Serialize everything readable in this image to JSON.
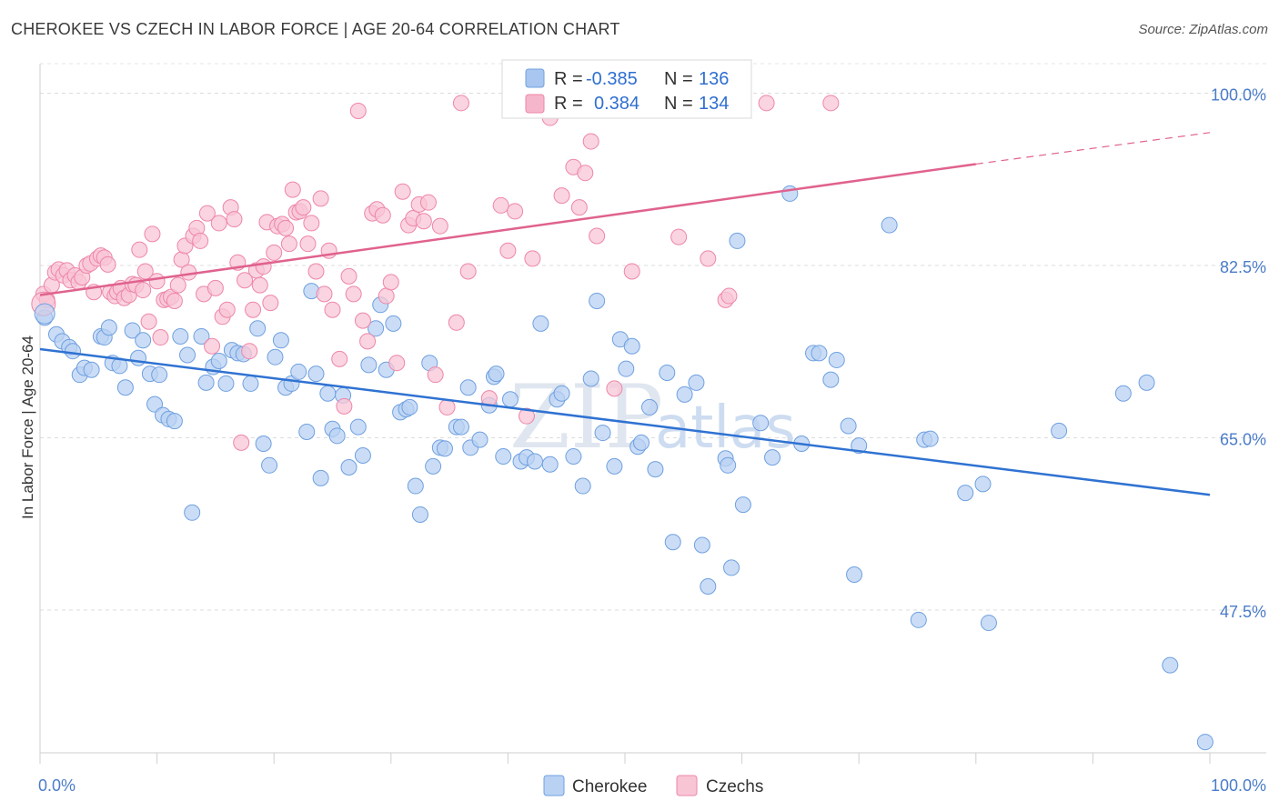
{
  "header": {
    "title": "CHEROKEE VS CZECH IN LABOR FORCE | AGE 20-64 CORRELATION CHART",
    "source": "Source: ZipAtlas.com"
  },
  "watermark": {
    "part1": "ZIP",
    "part2": "atlas"
  },
  "legend": {
    "rows": [
      {
        "r_label": "R =",
        "r_value": "-0.385",
        "n_label": "N =",
        "n_value": "136",
        "color": "#a9c6f0"
      },
      {
        "r_label": "R =",
        "r_value": "0.384",
        "n_label": "N =",
        "n_value": "134",
        "color": "#f5b6cb"
      }
    ]
  },
  "bottom_legend": {
    "items": [
      "Cherokee",
      "Czechs"
    ]
  },
  "chart_data": {
    "type": "scatter",
    "title": "CHEROKEE VS CZECH IN LABOR FORCE | AGE 20-64 CORRELATION CHART",
    "ylabel": "In Labor Force | Age 20-64",
    "xlabel": "",
    "xlim": [
      0,
      100
    ],
    "ylim": [
      33,
      103
    ],
    "x_tick_labels": [
      "0.0%",
      "100.0%"
    ],
    "y_ticks": [
      100.0,
      82.5,
      65.0,
      47.5
    ],
    "y_tick_labels": [
      "100.0%",
      "82.5%",
      "65.0%",
      "47.5%"
    ],
    "grid": "horizontal dashed",
    "legend_placement": "top-center",
    "series": [
      {
        "name": "Cherokee",
        "color": "#6fa0e0",
        "fill": "#b9d2f3",
        "trend": {
          "x": [
            0,
            100
          ],
          "y": [
            74.0,
            59.2
          ],
          "color": "#2f72d2"
        },
        "points": [
          [
            0.4,
            77.2
          ],
          [
            1.4,
            75.5
          ],
          [
            1.9,
            74.8
          ],
          [
            2.5,
            74.2
          ],
          [
            2.8,
            73.8
          ],
          [
            3.4,
            71.4
          ],
          [
            3.8,
            72.1
          ],
          [
            4.4,
            71.9
          ],
          [
            5.2,
            75.3
          ],
          [
            5.5,
            75.2
          ],
          [
            5.9,
            76.2
          ],
          [
            6.2,
            72.6
          ],
          [
            6.8,
            72.3
          ],
          [
            7.3,
            70.1
          ],
          [
            7.9,
            75.9
          ],
          [
            8.4,
            73.1
          ],
          [
            8.8,
            74.9
          ],
          [
            9.4,
            71.5
          ],
          [
            9.8,
            68.4
          ],
          [
            10.2,
            71.4
          ],
          [
            10.5,
            67.3
          ],
          [
            11.0,
            66.9
          ],
          [
            11.5,
            66.7
          ],
          [
            12.0,
            75.3
          ],
          [
            12.6,
            73.4
          ],
          [
            13.0,
            57.4
          ],
          [
            13.8,
            75.3
          ],
          [
            14.2,
            70.6
          ],
          [
            14.8,
            72.2
          ],
          [
            15.3,
            72.8
          ],
          [
            15.9,
            70.5
          ],
          [
            16.4,
            73.9
          ],
          [
            16.9,
            73.6
          ],
          [
            17.4,
            73.5
          ],
          [
            18.0,
            70.5
          ],
          [
            18.6,
            76.1
          ],
          [
            19.1,
            64.4
          ],
          [
            19.6,
            62.2
          ],
          [
            20.1,
            73.2
          ],
          [
            20.6,
            74.9
          ],
          [
            21.0,
            70.1
          ],
          [
            21.5,
            70.5
          ],
          [
            22.1,
            71.7
          ],
          [
            22.8,
            65.6
          ],
          [
            23.2,
            79.9
          ],
          [
            23.6,
            71.5
          ],
          [
            24.0,
            60.9
          ],
          [
            24.6,
            69.5
          ],
          [
            25.0,
            65.9
          ],
          [
            25.4,
            65.2
          ],
          [
            25.9,
            69.3
          ],
          [
            26.4,
            62.0
          ],
          [
            27.2,
            66.1
          ],
          [
            27.6,
            63.2
          ],
          [
            28.1,
            72.4
          ],
          [
            28.7,
            76.1
          ],
          [
            29.1,
            78.5
          ],
          [
            29.6,
            71.9
          ],
          [
            30.2,
            76.6
          ],
          [
            30.8,
            67.6
          ],
          [
            31.3,
            67.9
          ],
          [
            31.6,
            68.1
          ],
          [
            32.1,
            60.1
          ],
          [
            32.5,
            57.2
          ],
          [
            33.3,
            72.6
          ],
          [
            33.6,
            62.1
          ],
          [
            34.2,
            64.0
          ],
          [
            34.6,
            63.9
          ],
          [
            35.6,
            66.1
          ],
          [
            36.0,
            66.1
          ],
          [
            36.6,
            70.1
          ],
          [
            36.8,
            64.0
          ],
          [
            37.6,
            64.8
          ],
          [
            38.4,
            68.3
          ],
          [
            38.8,
            71.2
          ],
          [
            39.0,
            71.5
          ],
          [
            39.6,
            63.1
          ],
          [
            40.2,
            68.9
          ],
          [
            41.1,
            62.6
          ],
          [
            41.6,
            63.0
          ],
          [
            42.3,
            62.6
          ],
          [
            42.8,
            76.6
          ],
          [
            43.6,
            62.3
          ],
          [
            44.2,
            68.9
          ],
          [
            44.6,
            69.5
          ],
          [
            45.6,
            63.1
          ],
          [
            46.4,
            60.1
          ],
          [
            47.1,
            71.0
          ],
          [
            47.6,
            78.9
          ],
          [
            48.1,
            65.5
          ],
          [
            49.1,
            62.1
          ],
          [
            49.6,
            75.0
          ],
          [
            50.1,
            72.0
          ],
          [
            50.6,
            74.3
          ],
          [
            51.1,
            64.1
          ],
          [
            51.4,
            64.5
          ],
          [
            52.1,
            68.1
          ],
          [
            52.6,
            61.8
          ],
          [
            53.6,
            71.6
          ],
          [
            54.1,
            54.4
          ],
          [
            55.1,
            69.4
          ],
          [
            56.1,
            70.6
          ],
          [
            56.6,
            54.1
          ],
          [
            57.1,
            49.9
          ],
          [
            58.6,
            62.9
          ],
          [
            58.8,
            62.2
          ],
          [
            59.1,
            51.8
          ],
          [
            59.6,
            85.0
          ],
          [
            60.1,
            58.2
          ],
          [
            61.6,
            66.5
          ],
          [
            62.6,
            63.0
          ],
          [
            64.1,
            89.8
          ],
          [
            65.1,
            64.4
          ],
          [
            66.1,
            73.6
          ],
          [
            66.6,
            73.6
          ],
          [
            67.6,
            70.9
          ],
          [
            68.1,
            72.9
          ],
          [
            69.1,
            66.2
          ],
          [
            69.6,
            51.1
          ],
          [
            70.0,
            64.2
          ],
          [
            72.6,
            86.6
          ],
          [
            75.1,
            46.5
          ],
          [
            75.6,
            64.8
          ],
          [
            76.1,
            64.9
          ],
          [
            79.1,
            59.4
          ],
          [
            80.6,
            60.3
          ],
          [
            81.1,
            46.2
          ],
          [
            87.1,
            65.7
          ],
          [
            92.6,
            69.5
          ],
          [
            94.6,
            70.6
          ],
          [
            96.6,
            41.9
          ],
          [
            99.6,
            34.1
          ]
        ]
      },
      {
        "name": "Czechs",
        "color": "#ee86a8",
        "fill": "#f8c5d5",
        "trend": {
          "x": [
            0,
            80
          ],
          "y": [
            79.5,
            92.8
          ],
          "dashed_to": [
            100,
            96.0
          ],
          "color": "#e0628e"
        },
        "points": [
          [
            0.3,
            79.6
          ],
          [
            0.6,
            79.0
          ],
          [
            1.0,
            80.5
          ],
          [
            1.3,
            81.8
          ],
          [
            1.6,
            82.1
          ],
          [
            2.0,
            81.5
          ],
          [
            2.3,
            82.0
          ],
          [
            2.6,
            81.0
          ],
          [
            3.0,
            81.5
          ],
          [
            3.3,
            80.8
          ],
          [
            3.6,
            81.3
          ],
          [
            4.0,
            82.5
          ],
          [
            4.3,
            82.7
          ],
          [
            4.6,
            79.8
          ],
          [
            4.9,
            83.2
          ],
          [
            5.2,
            83.5
          ],
          [
            5.5,
            83.3
          ],
          [
            5.8,
            82.6
          ],
          [
            6.0,
            79.8
          ],
          [
            6.4,
            79.4
          ],
          [
            6.6,
            79.8
          ],
          [
            6.9,
            80.2
          ],
          [
            7.2,
            79.2
          ],
          [
            7.6,
            79.5
          ],
          [
            7.9,
            80.6
          ],
          [
            8.2,
            80.5
          ],
          [
            8.5,
            84.1
          ],
          [
            8.8,
            80.0
          ],
          [
            9.0,
            81.9
          ],
          [
            9.3,
            76.8
          ],
          [
            9.6,
            85.7
          ],
          [
            10.0,
            80.9
          ],
          [
            10.3,
            75.2
          ],
          [
            10.6,
            79.0
          ],
          [
            10.9,
            79.1
          ],
          [
            11.2,
            79.3
          ],
          [
            11.5,
            78.9
          ],
          [
            11.8,
            80.5
          ],
          [
            12.1,
            83.1
          ],
          [
            12.4,
            84.5
          ],
          [
            12.7,
            81.8
          ],
          [
            13.1,
            85.5
          ],
          [
            13.4,
            86.3
          ],
          [
            13.7,
            85.0
          ],
          [
            14.0,
            79.6
          ],
          [
            14.3,
            87.8
          ],
          [
            14.7,
            74.3
          ],
          [
            15.0,
            80.2
          ],
          [
            15.3,
            86.8
          ],
          [
            15.6,
            77.3
          ],
          [
            16.0,
            78.0
          ],
          [
            16.3,
            88.4
          ],
          [
            16.6,
            87.2
          ],
          [
            16.9,
            82.8
          ],
          [
            17.2,
            64.5
          ],
          [
            17.5,
            81.0
          ],
          [
            17.9,
            73.8
          ],
          [
            18.2,
            78.0
          ],
          [
            18.5,
            82.0
          ],
          [
            18.8,
            80.5
          ],
          [
            19.1,
            82.4
          ],
          [
            19.4,
            86.9
          ],
          [
            19.7,
            78.7
          ],
          [
            20.0,
            83.8
          ],
          [
            20.3,
            86.5
          ],
          [
            20.7,
            86.7
          ],
          [
            21.0,
            86.3
          ],
          [
            21.3,
            84.7
          ],
          [
            21.6,
            90.2
          ],
          [
            21.9,
            87.9
          ],
          [
            22.2,
            88.0
          ],
          [
            22.5,
            88.4
          ],
          [
            22.9,
            84.7
          ],
          [
            23.2,
            86.8
          ],
          [
            23.6,
            81.9
          ],
          [
            24.0,
            89.3
          ],
          [
            24.3,
            79.6
          ],
          [
            24.7,
            84.0
          ],
          [
            25.0,
            78.0
          ],
          [
            25.6,
            73.0
          ],
          [
            26.0,
            68.2
          ],
          [
            26.4,
            81.4
          ],
          [
            26.8,
            79.6
          ],
          [
            27.2,
            98.2
          ],
          [
            27.6,
            76.9
          ],
          [
            28.0,
            74.8
          ],
          [
            28.4,
            87.8
          ],
          [
            28.8,
            88.2
          ],
          [
            29.3,
            87.6
          ],
          [
            29.6,
            79.4
          ],
          [
            30.0,
            80.8
          ],
          [
            30.5,
            72.6
          ],
          [
            31.0,
            90.0
          ],
          [
            31.5,
            86.6
          ],
          [
            31.9,
            87.3
          ],
          [
            32.4,
            88.7
          ],
          [
            32.8,
            87.0
          ],
          [
            33.2,
            88.9
          ],
          [
            33.8,
            71.4
          ],
          [
            34.2,
            86.5
          ],
          [
            34.8,
            68.1
          ],
          [
            35.6,
            76.7
          ],
          [
            36.0,
            99.0
          ],
          [
            36.6,
            81.9
          ],
          [
            38.4,
            69.0
          ],
          [
            39.4,
            88.6
          ],
          [
            40.0,
            84.0
          ],
          [
            40.6,
            88.0
          ],
          [
            41.6,
            67.2
          ],
          [
            42.1,
            83.2
          ],
          [
            43.0,
            99.0
          ],
          [
            43.6,
            97.5
          ],
          [
            44.6,
            89.6
          ],
          [
            45.6,
            92.5
          ],
          [
            46.1,
            88.4
          ],
          [
            46.6,
            91.9
          ],
          [
            47.1,
            95.1
          ],
          [
            47.6,
            85.5
          ],
          [
            49.1,
            70.0
          ],
          [
            50.6,
            81.9
          ],
          [
            51.6,
            99.0
          ],
          [
            54.6,
            85.4
          ],
          [
            57.1,
            83.2
          ],
          [
            58.6,
            79.0
          ],
          [
            58.9,
            79.4
          ],
          [
            62.1,
            99.0
          ],
          [
            67.6,
            99.0
          ]
        ]
      }
    ]
  }
}
